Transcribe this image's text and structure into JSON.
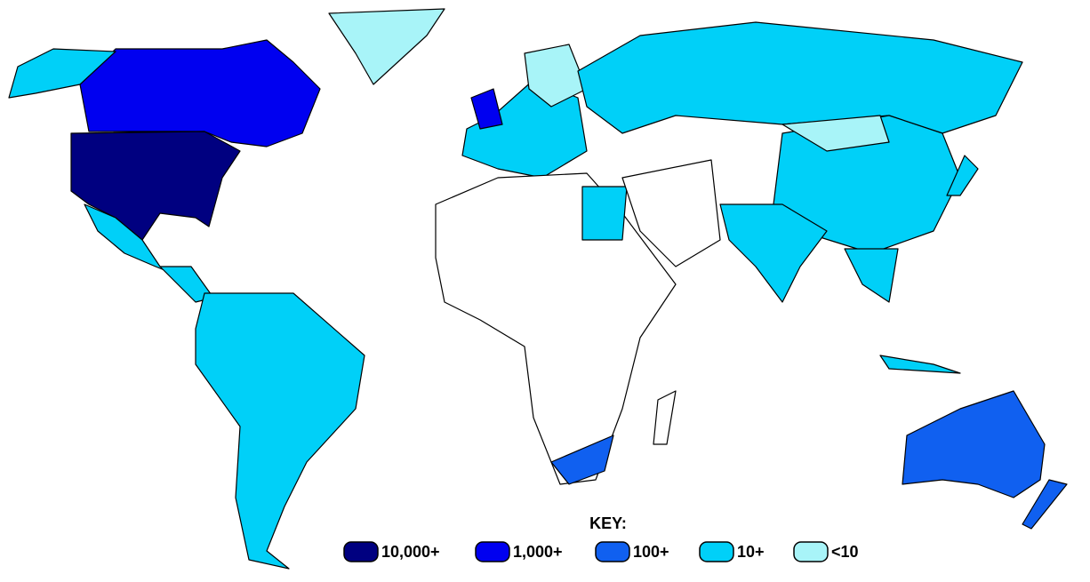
{
  "key": {
    "title": "KEY:",
    "items": [
      {
        "label": "10,000+",
        "color": "#000080"
      },
      {
        "label": "1,000+",
        "color": "#0000f0"
      },
      {
        "label": "100+",
        "color": "#1060f0"
      },
      {
        "label": "10+",
        "color": "#00d0f8"
      },
      {
        "label": "<10",
        "color": "#a8f4f8"
      }
    ]
  }
}
